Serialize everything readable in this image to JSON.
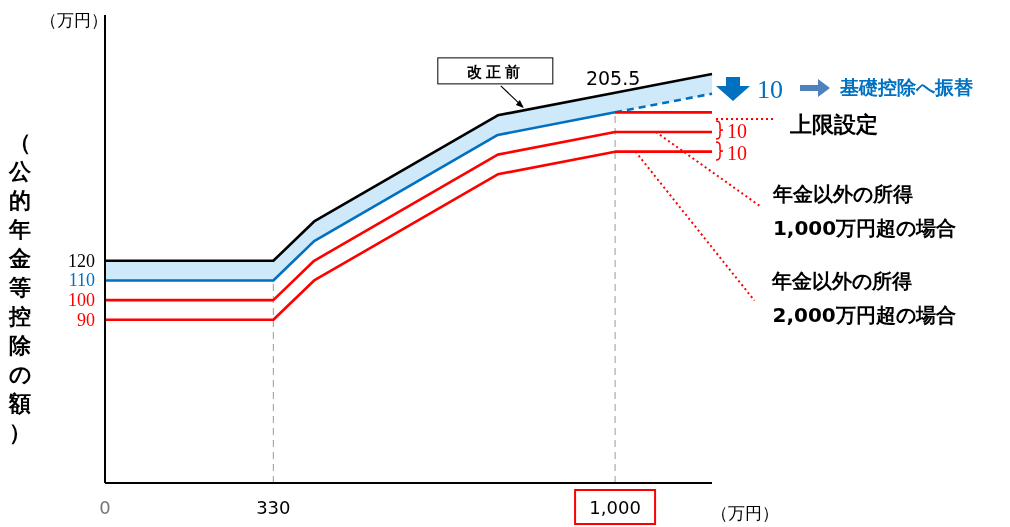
{
  "chart_data": {
    "type": "line",
    "xlabel": "（万円）",
    "ylabel": "（公的年金等控除の額）",
    "xlim": [
      0,
      1190
    ],
    "xticks": [
      0,
      330,
      {
        "value": 1000,
        "label": "1,000"
      }
    ],
    "ylim": [
      7,
      245
    ],
    "yticks": [
      90,
      100,
      110,
      120
    ],
    "grid": false,
    "marker": "none",
    "series": [
      {
        "name": "改正前",
        "color": "#000000",
        "x": [
          0,
          330,
          410,
          770,
          1000,
          1190
        ],
        "values": [
          120,
          120,
          140,
          194,
          205.5,
          215
        ],
        "lower": [
          110,
          110,
          130,
          184,
          195.5,
          205
        ],
        "upper": [
          120,
          120,
          140,
          194,
          205.5,
          215
        ]
      },
      {
        "color": "#0070c0",
        "x": [
          0,
          330,
          410,
          770,
          1000
        ],
        "values": [
          110,
          110,
          130,
          184,
          195.5
        ]
      },
      {
        "color": "#0070c0",
        "x": [
          1000,
          1190
        ],
        "values": [
          195.5,
          205
        ],
        "line_style": "dashed"
      },
      {
        "color": "#ff0000",
        "x": [
          1000,
          1190
        ],
        "values": [
          195.5,
          195.5
        ]
      },
      {
        "color": "#ff0000",
        "x": [
          0,
          330,
          410,
          770,
          1000,
          1190
        ],
        "values": [
          100,
          100,
          120,
          174,
          185.5,
          185.5
        ]
      },
      {
        "color": "#ff0000",
        "x": [
          0,
          330,
          410,
          770,
          1000,
          1190
        ],
        "values": [
          90,
          90,
          110,
          164,
          175.5,
          175.5
        ]
      }
    ],
    "ref_lines": [
      {
        "axis": "x",
        "value": 330,
        "color": "#999999",
        "line_style": "dashed"
      },
      {
        "axis": "x",
        "value": 1000,
        "color": "#999999",
        "line_style": "dashed"
      }
    ],
    "annotations": [
      "（万円）",
      {
        "text": "205.5",
        "x": 1000,
        "y": 205.5
      },
      "10",
      "基礎控除へ振替",
      "上限設定",
      "10",
      "10",
      {
        "text": "年金以外の所得\n1,000万円超の場合",
        "x": 1080,
        "y": 185.5
      },
      {
        "text": "年金以外の所得\n2,000万円超の場合",
        "x": 1040,
        "y": 175.5
      }
    ]
  }
}
